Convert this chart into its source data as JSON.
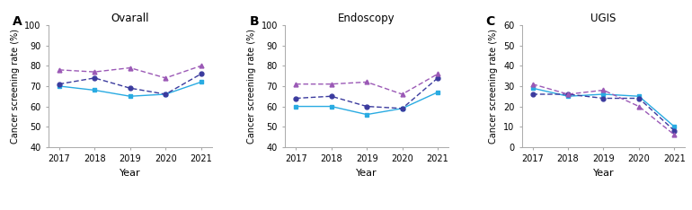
{
  "years": [
    2017,
    2018,
    2019,
    2020,
    2021
  ],
  "panels": [
    {
      "label": "A",
      "title": "Ovarall",
      "ylabel": "Cancer screening rate (%)",
      "ylim": [
        40,
        100
      ],
      "yticks": [
        40,
        50,
        60,
        70,
        80,
        90,
        100
      ],
      "low": [
        70,
        68,
        65,
        66,
        72
      ],
      "middle": [
        71,
        74,
        69,
        66,
        76
      ],
      "high": [
        78,
        77,
        79,
        74,
        80
      ]
    },
    {
      "label": "B",
      "title": "Endoscopy",
      "ylabel": "Cancer screening rate (%)",
      "ylim": [
        40,
        100
      ],
      "yticks": [
        40,
        50,
        60,
        70,
        80,
        90,
        100
      ],
      "low": [
        60,
        60,
        56,
        59,
        67
      ],
      "middle": [
        64,
        65,
        60,
        59,
        74
      ],
      "high": [
        71,
        71,
        72,
        66,
        76
      ]
    },
    {
      "label": "C",
      "title": "UGIS",
      "ylabel": "Cancer screening rate (%)",
      "ylim": [
        0,
        60
      ],
      "yticks": [
        0,
        10,
        20,
        30,
        40,
        50,
        60
      ],
      "low": [
        29,
        25,
        26,
        25,
        10
      ],
      "middle": [
        26,
        26,
        24,
        24,
        8
      ],
      "high": [
        31,
        26,
        28,
        20,
        6
      ]
    }
  ],
  "color_low": "#29ABE2",
  "color_middle": "#3B3B9E",
  "color_high": "#9B59B6",
  "xlabel": "Year"
}
